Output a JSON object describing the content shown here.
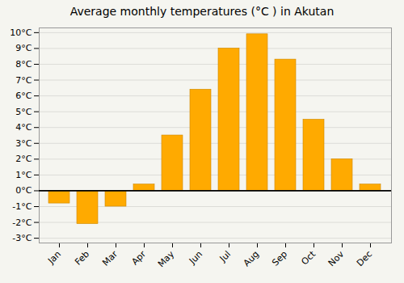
{
  "chart_data": {
    "type": "bar",
    "title": "Average monthly temperatures (°C ) in Akutan",
    "categories": [
      "Jan",
      "Feb",
      "Mar",
      "Apr",
      "May",
      "Jun",
      "Jul",
      "Aug",
      "Sep",
      "Oct",
      "Nov",
      "Dec"
    ],
    "values": [
      -0.8,
      -2.1,
      -1.0,
      0.4,
      3.5,
      6.4,
      9.0,
      9.9,
      8.3,
      4.5,
      2.0,
      0.4
    ],
    "color": "#FFAA00",
    "ylim": [
      -3.3,
      10.3
    ],
    "yticks": [
      {
        "value": -3,
        "label": "-3°C"
      },
      {
        "value": -2,
        "label": "-2°C"
      },
      {
        "value": -1,
        "label": "-1°C"
      },
      {
        "value": 0,
        "label": "0°C"
      },
      {
        "value": 1,
        "label": "1°C"
      },
      {
        "value": 2,
        "label": "2°C"
      },
      {
        "value": 3,
        "label": "3°C"
      },
      {
        "value": 4,
        "label": "4°C"
      },
      {
        "value": 5,
        "label": "5°C"
      },
      {
        "value": 6,
        "label": "6°C"
      },
      {
        "value": 7,
        "label": "7°C"
      },
      {
        "value": 8,
        "label": "8°C"
      },
      {
        "value": 9,
        "label": "9°C"
      },
      {
        "value": 10,
        "label": "10°C"
      }
    ],
    "grid": true
  }
}
